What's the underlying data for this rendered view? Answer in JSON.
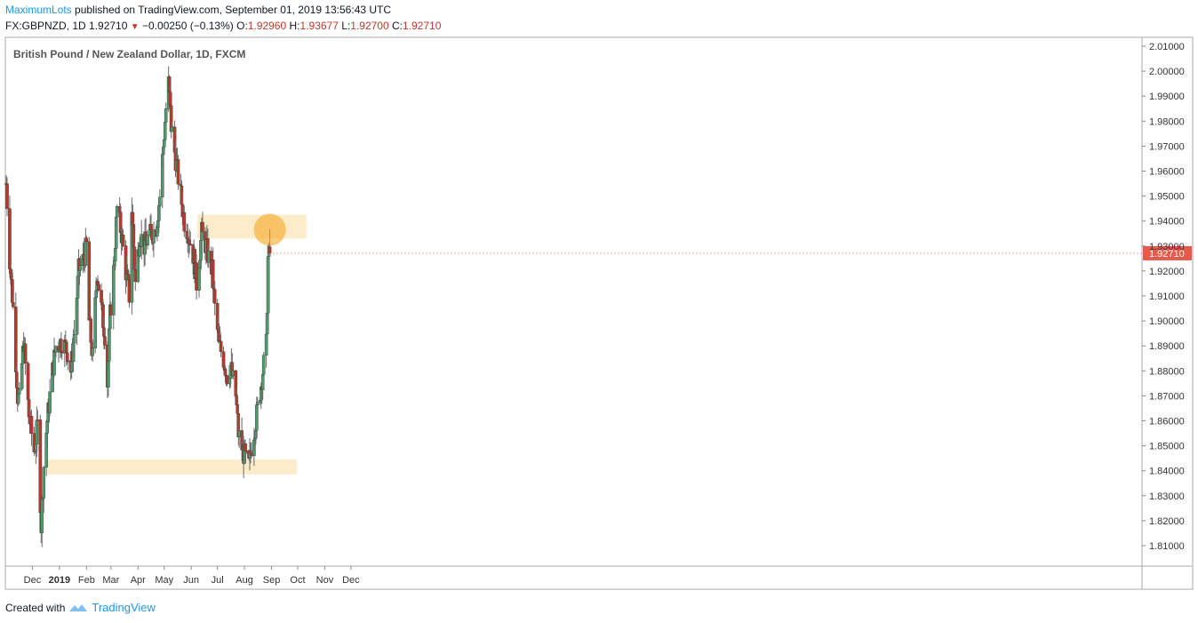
{
  "header": {
    "author": "MaximumLots",
    "published_text": "published on TradingView.com, September 01, 2019 13:56:43 UTC",
    "symbol_tf": "FX:GBPNZD, 1D",
    "last": "1.92710",
    "change": "−0.00250 (−0.13%)",
    "o_label": "O:",
    "o_value": "1.92960",
    "h_label": "H:",
    "h_value": "1.93677",
    "l_label": "L:",
    "l_value": "1.92700",
    "c_label": "C:",
    "c_value": "1.92710"
  },
  "footer": {
    "created_with": "Created with",
    "brand": "TradingView"
  },
  "icons": {
    "change_arrow": "triangle-down-icon",
    "brand_logo": "tradingview-logo-icon"
  },
  "chart_data": {
    "type": "candlestick",
    "title": "British Pound / New Zealand Dollar, 1D, FXCM",
    "last_price_label": "1.92710",
    "ylim": [
      1.8,
      2.015
    ],
    "y_ticks": [
      "1.81000",
      "1.82000",
      "1.83000",
      "1.84000",
      "1.85000",
      "1.86000",
      "1.87000",
      "1.88000",
      "1.89000",
      "1.90000",
      "1.91000",
      "1.92000",
      "1.93000",
      "1.94000",
      "1.95000",
      "1.96000",
      "1.97000",
      "1.98000",
      "1.99000",
      "2.00000",
      "2.01000"
    ],
    "x_ticks": [
      "Dec",
      "2019",
      "Feb",
      "Mar",
      "Apr",
      "May",
      "Jun",
      "Jul",
      "Aug",
      "Sep",
      "Oct",
      "Nov",
      "Dec"
    ],
    "colors": {
      "up": "#4f9a6c",
      "down": "#b53a2a",
      "zone": "#fde9bf",
      "marker": "#f5a623",
      "price_tag": "#e55a4a"
    },
    "zones": [
      {
        "from": "2018-12-18",
        "to": "2019-09-30",
        "low": 1.8385,
        "high": 1.8445
      },
      {
        "from": "2019-06-08",
        "to": "2019-10-11",
        "low": 1.933,
        "high": 1.9425
      }
    ],
    "marker": {
      "date": "2019-08-28",
      "price": 1.9365
    },
    "anchors": [
      [
        "2018-11-01",
        1.955
      ],
      [
        "2018-11-05",
        1.925
      ],
      [
        "2018-11-09",
        1.905
      ],
      [
        "2018-11-14",
        1.87
      ],
      [
        "2018-11-16",
        1.868
      ],
      [
        "2018-11-21",
        1.892
      ],
      [
        "2018-11-27",
        1.862
      ],
      [
        "2018-12-03",
        1.848
      ],
      [
        "2018-12-07",
        1.858
      ],
      [
        "2018-12-11",
        1.818
      ],
      [
        "2018-12-14",
        1.842
      ],
      [
        "2018-12-18",
        1.86
      ],
      [
        "2018-12-24",
        1.88
      ],
      [
        "2018-12-28",
        1.89
      ],
      [
        "2019-01-04",
        1.892
      ],
      [
        "2019-01-10",
        1.888
      ],
      [
        "2019-01-14",
        1.88
      ],
      [
        "2019-01-18",
        1.895
      ],
      [
        "2019-01-23",
        1.92
      ],
      [
        "2019-01-29",
        1.925
      ],
      [
        "2019-02-01",
        1.93
      ],
      [
        "2019-02-04",
        1.9
      ],
      [
        "2019-02-08",
        1.885
      ],
      [
        "2019-02-13",
        1.92
      ],
      [
        "2019-02-18",
        1.905
      ],
      [
        "2019-02-22",
        1.895
      ],
      [
        "2019-02-25",
        1.875
      ],
      [
        "2019-02-28",
        1.902
      ],
      [
        "2019-03-04",
        1.92
      ],
      [
        "2019-03-08",
        1.945
      ],
      [
        "2019-03-13",
        1.935
      ],
      [
        "2019-03-18",
        1.92
      ],
      [
        "2019-03-22",
        1.91
      ],
      [
        "2019-03-25",
        1.945
      ],
      [
        "2019-03-29",
        1.915
      ],
      [
        "2019-04-03",
        1.935
      ],
      [
        "2019-04-08",
        1.93
      ],
      [
        "2019-04-12",
        1.933
      ],
      [
        "2019-04-17",
        1.935
      ],
      [
        "2019-04-22",
        1.938
      ],
      [
        "2019-04-26",
        1.95
      ],
      [
        "2019-04-30",
        1.97
      ],
      [
        "2019-05-03",
        1.985
      ],
      [
        "2019-05-06",
        1.995
      ],
      [
        "2019-05-09",
        1.978
      ],
      [
        "2019-05-14",
        1.965
      ],
      [
        "2019-05-20",
        1.95
      ],
      [
        "2019-05-24",
        1.94
      ],
      [
        "2019-05-29",
        1.935
      ],
      [
        "2019-06-04",
        1.925
      ],
      [
        "2019-06-07",
        1.915
      ],
      [
        "2019-06-10",
        1.925
      ],
      [
        "2019-06-13",
        1.935
      ],
      [
        "2019-06-18",
        1.93
      ],
      [
        "2019-06-21",
        1.925
      ],
      [
        "2019-06-25",
        1.92
      ],
      [
        "2019-06-28",
        1.905
      ],
      [
        "2019-07-03",
        1.89
      ],
      [
        "2019-07-08",
        1.885
      ],
      [
        "2019-07-12",
        1.878
      ],
      [
        "2019-07-16",
        1.882
      ],
      [
        "2019-07-22",
        1.87
      ],
      [
        "2019-07-25",
        1.855
      ],
      [
        "2019-07-30",
        1.848
      ],
      [
        "2019-08-02",
        1.845
      ],
      [
        "2019-08-06",
        1.842
      ],
      [
        "2019-08-09",
        1.85
      ],
      [
        "2019-08-14",
        1.86
      ],
      [
        "2019-08-19",
        1.872
      ],
      [
        "2019-08-22",
        1.88
      ],
      [
        "2019-08-26",
        1.89
      ],
      [
        "2019-08-28",
        1.925
      ],
      [
        "2019-08-30",
        1.9271
      ]
    ],
    "last_candle": {
      "date": "2019-08-30",
      "open": 1.9296,
      "high": 1.93677,
      "low": 1.927,
      "close": 1.9271
    }
  }
}
